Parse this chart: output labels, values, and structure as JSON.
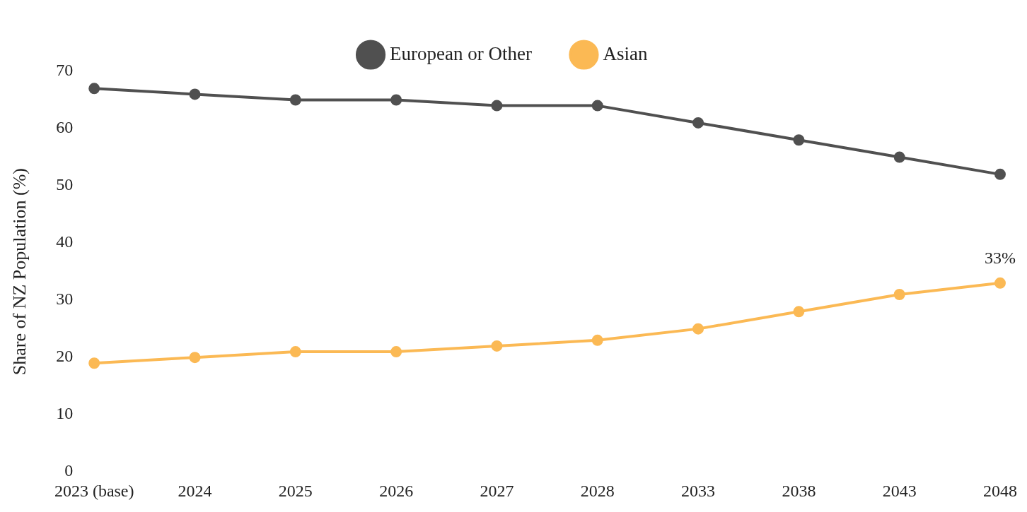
{
  "chart_data": {
    "type": "line",
    "ylabel": "Share of NZ Population (%)",
    "categories": [
      "2023 (base)",
      "2024",
      "2025",
      "2026",
      "2027",
      "2028",
      "2033",
      "2038",
      "2043",
      "2048"
    ],
    "series": [
      {
        "name": "European or Other",
        "color": "#505050",
        "values": [
          67,
          66,
          65,
          65,
          64,
          64,
          61,
          58,
          55,
          52
        ]
      },
      {
        "name": "Asian",
        "color": "#fbb954",
        "values": [
          19,
          20,
          21,
          21,
          22,
          23,
          25,
          28,
          31,
          33
        ]
      }
    ],
    "ylim": [
      0,
      70
    ],
    "yticks": [
      0,
      10,
      20,
      30,
      40,
      50,
      60,
      70
    ],
    "grid": false,
    "legend": "top",
    "marker": "circle",
    "line_style": "solid",
    "annotations": [
      {
        "text": "33%",
        "x": "2048",
        "y": 33
      }
    ]
  }
}
